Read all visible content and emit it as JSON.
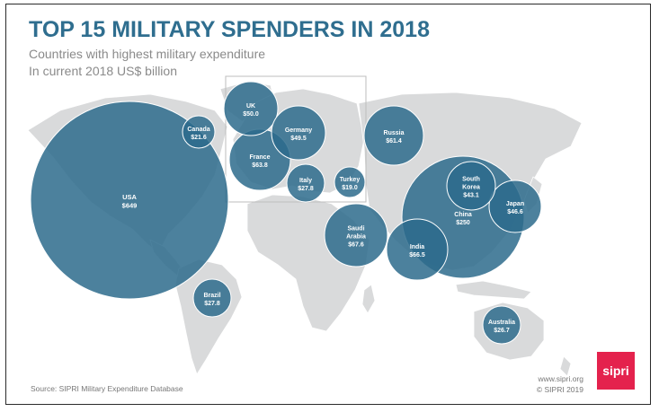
{
  "title": "TOP 15 MILITARY SPENDERS IN 2018",
  "subtitle": "Countries with highest military expenditure",
  "subtitle2": "In current 2018 US$ billion",
  "source": "Source: SIPRI Military Expenditure Database",
  "site_url": "www.sipri.org",
  "copyright": "© SIPRI 2019",
  "logo_text": "sipri",
  "colors": {
    "bubble": "#2d6b8c",
    "map": "#d9dadb",
    "title": "#2f6e8f",
    "logo": "#e4224d"
  },
  "chart_data": {
    "type": "bubble-map",
    "title": "TOP 15 MILITARY SPENDERS IN 2018",
    "subtitle": "Countries with highest military expenditure",
    "unit": "In current 2018 US$ billion",
    "points": [
      {
        "country": "USA",
        "value": 649,
        "label": "$649"
      },
      {
        "country": "China",
        "value": 250,
        "label": "$250"
      },
      {
        "country": "Saudi Arabia",
        "value": 67.6,
        "label": "$67.6"
      },
      {
        "country": "India",
        "value": 66.5,
        "label": "$66.5"
      },
      {
        "country": "France",
        "value": 63.8,
        "label": "$63.8"
      },
      {
        "country": "Russia",
        "value": 61.4,
        "label": "$61.4"
      },
      {
        "country": "UK",
        "value": 50.0,
        "label": "$50.0"
      },
      {
        "country": "Germany",
        "value": 49.5,
        "label": "$49.5"
      },
      {
        "country": "Japan",
        "value": 46.6,
        "label": "$46.6"
      },
      {
        "country": "South Korea",
        "value": 43.1,
        "label": "$43.1"
      },
      {
        "country": "Italy",
        "value": 27.8,
        "label": "$27.8"
      },
      {
        "country": "Brazil",
        "value": 27.8,
        "label": "$27.8"
      },
      {
        "country": "Australia",
        "value": 26.7,
        "label": "$26.7"
      },
      {
        "country": "Canada",
        "value": 21.6,
        "label": "$21.6"
      },
      {
        "country": "Turkey",
        "value": 19.0,
        "label": "$19.0"
      }
    ]
  }
}
